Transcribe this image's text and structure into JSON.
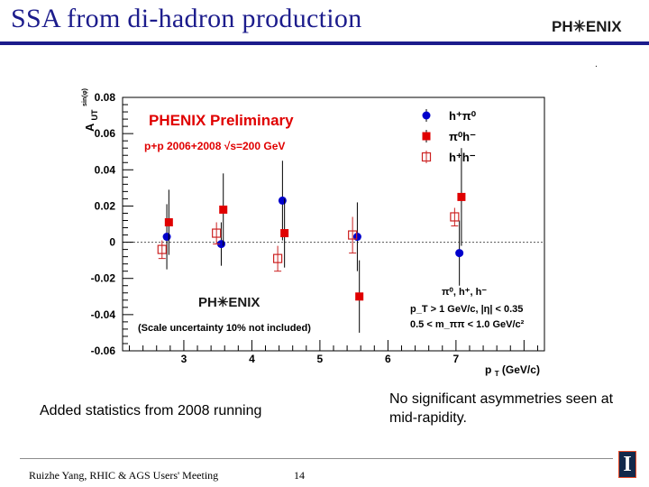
{
  "slide": {
    "title": "SSA from di-hadron production",
    "logo_text": "PH✳ENIX",
    "note_left": "Added statistics from 2008 running",
    "note_right": "No significant asymmetries seen at mid-rapidity.",
    "footer_left": "Ruizhe Yang, RHIC & AGS Users' Meeting",
    "page_number": "14",
    "illinois_mark": "I",
    "stray_mark": ".",
    "colors": {
      "title": "#1c1c8c",
      "red": "#e00000",
      "blue": "#0000cc",
      "hollow_red": "#cc2222"
    }
  },
  "chart_data": {
    "type": "scatter",
    "title": "PHENIX Preliminary",
    "subtitle": "p+p 2006+2008  √s=200 GeV",
    "ylabel": "A_UT^{sin(φ)}",
    "ylabel_main": "A",
    "ylabel_sub": "UT",
    "ylabel_sup": "sin(φ)",
    "xlabel": "p_T (GeV/c)",
    "xlabel_main": "p",
    "xlabel_sub": "T",
    "xlabel_rest": " (GeV/c)",
    "xlim": [
      2.1,
      8.3
    ],
    "ylim": [
      -0.06,
      0.08
    ],
    "xticks": [
      "3",
      "4",
      "5",
      "6",
      "7"
    ],
    "xtick_values": [
      3,
      4,
      5,
      6,
      7
    ],
    "yticks": [
      "0.08",
      "0.06",
      "0.04",
      "0.02",
      "0",
      "-0.02",
      "-0.04",
      "-0.06"
    ],
    "ytick_values": [
      0.08,
      0.06,
      0.04,
      0.02,
      0,
      -0.02,
      -0.04,
      -0.06
    ],
    "zero_line": true,
    "legend_placement": "top-right",
    "cuts": {
      "pairs": "π⁰, h⁺, h⁻",
      "pt_cut": "p_T > 1 GeV/c, |η| < 0.35",
      "mass_cut": "0.5 < m_ππ < 1.0 GeV/c²"
    },
    "inset_logo": "PH✳ENIX",
    "scale_note": "(Scale uncertainty 10% not included)",
    "series": [
      {
        "name": "h⁺π⁰",
        "marker": "circle",
        "color": "#0000cc",
        "x": [
          2.75,
          3.55,
          4.45,
          5.55,
          7.05
        ],
        "y": [
          0.003,
          -0.001,
          0.023,
          0.003,
          -0.006
        ],
        "err": [
          0.018,
          0.012,
          0.022,
          0.019,
          0.018
        ]
      },
      {
        "name": "π⁰h⁻",
        "marker": "filled-square",
        "color": "#e00000",
        "x": [
          2.78,
          3.58,
          4.48,
          5.58,
          7.08
        ],
        "y": [
          0.011,
          0.018,
          0.005,
          -0.03,
          0.025
        ],
        "err": [
          0.018,
          0.02,
          0.019,
          0.02,
          0.027
        ]
      },
      {
        "name": "h⁺h⁻",
        "marker": "open-square",
        "color": "#cc2222",
        "x": [
          2.68,
          3.48,
          4.38,
          5.48,
          6.98
        ],
        "y": [
          -0.004,
          0.005,
          -0.009,
          0.004,
          0.014
        ],
        "err": [
          0.005,
          0.006,
          0.007,
          0.01,
          0.005
        ]
      }
    ]
  }
}
